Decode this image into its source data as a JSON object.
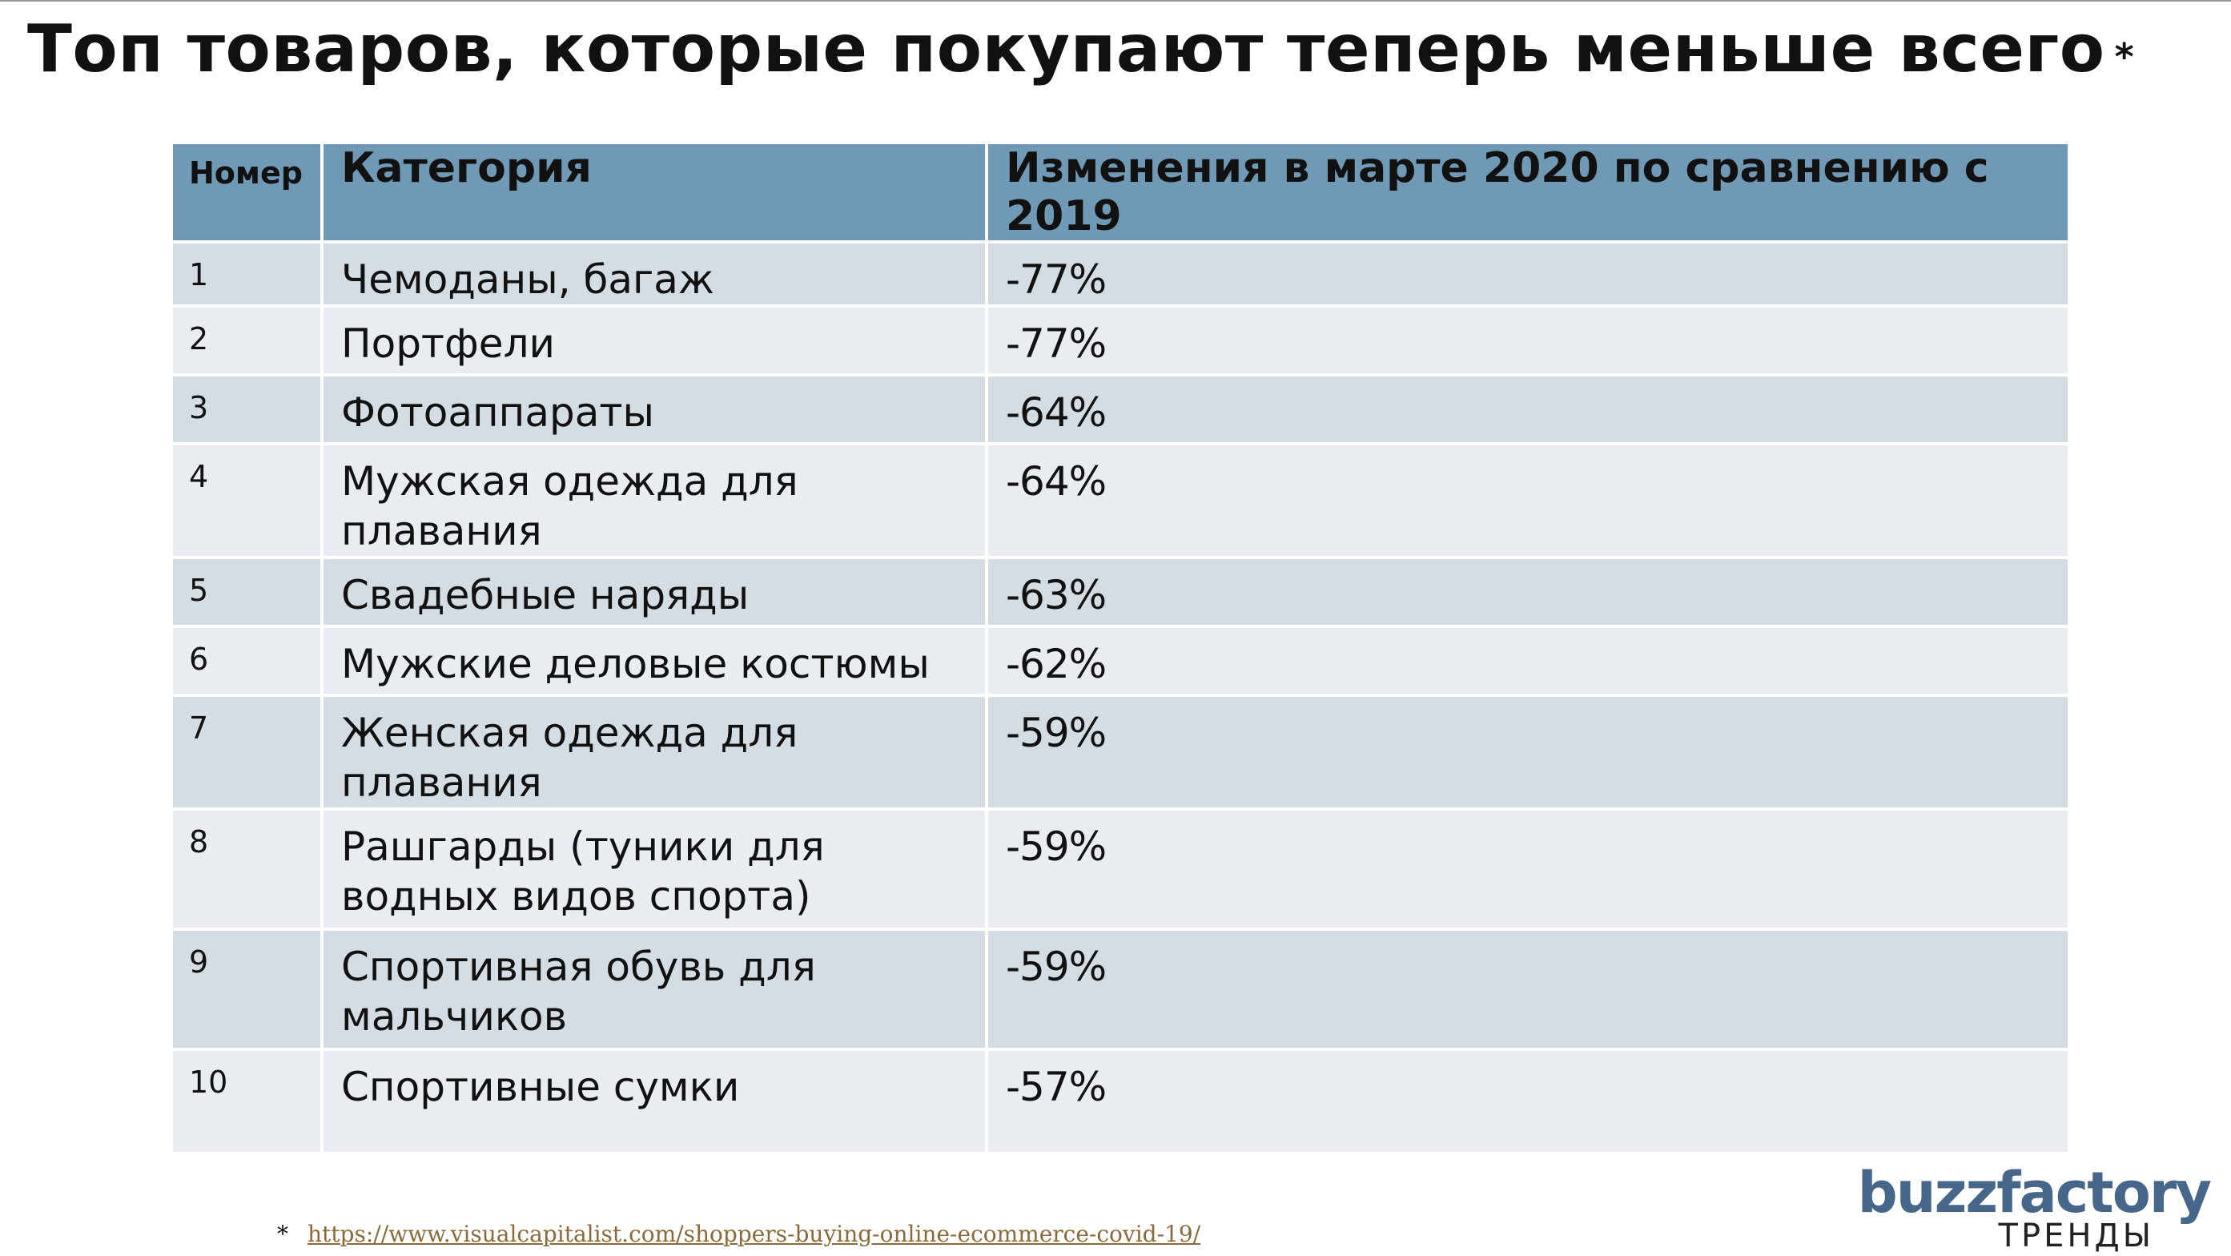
{
  "title": "Топ товаров, которые покупают теперь меньше всего",
  "title_marker": "*",
  "table": {
    "headers": {
      "number": "Номер",
      "category": "Категория",
      "change": "Изменения в марте 2020 по сравнению с 2019"
    },
    "rows": [
      {
        "num": "1",
        "category": "Чемоданы, багаж",
        "change": "-77%"
      },
      {
        "num": "2",
        "category": "Портфели",
        "change": "-77%"
      },
      {
        "num": "3",
        "category": "Фотоаппараты",
        "change": "-64%"
      },
      {
        "num": "4",
        "category": "Мужская одежда для плавания",
        "change": "-64%"
      },
      {
        "num": "5",
        "category": "Свадебные наряды",
        "change": "-63%"
      },
      {
        "num": "6",
        "category": "Мужские деловые костюмы",
        "change": "-62%"
      },
      {
        "num": "7",
        "category": "Женская одежда для плавания",
        "change": "-59%"
      },
      {
        "num": "8",
        "category": "Рашгарды (туники для водных видов спорта)",
        "change": "-59%"
      },
      {
        "num": "9",
        "category": "Спортивная обувь для мальчиков",
        "change": "-59%"
      },
      {
        "num": "10",
        "category": "Спортивные сумки",
        "change": "-57%"
      }
    ]
  },
  "footnote": {
    "marker": "*",
    "url": "https://www.visualcapitalist.com/shoppers-buying-online-ecommerce-covid-19/"
  },
  "logo": {
    "wordmark": "buzzfactory",
    "subtitle": "ТРЕНДЫ"
  },
  "colors": {
    "header_bg": "#7099b5",
    "row_dark": "#d4dce4",
    "row_light": "#e9edf1",
    "logo": "#46668a"
  }
}
